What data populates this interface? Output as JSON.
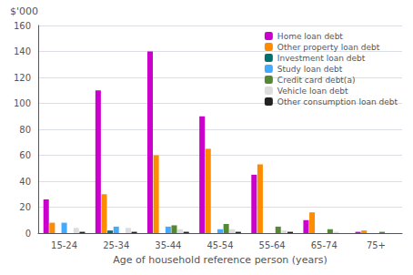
{
  "chart_data": {
    "type": "bar",
    "xlabel": "Age of household reference person (years)",
    "ylabel": "$'000",
    "categories": [
      "15-24",
      "25-34",
      "35-44",
      "45-54",
      "55-64",
      "65-74",
      "75+"
    ],
    "series": [
      {
        "name": "Home loan debt",
        "color": "#CC00CC",
        "values": [
          26,
          110,
          140,
          90,
          45,
          10,
          1
        ]
      },
      {
        "name": "Other property loan debt",
        "color": "#FF8C00",
        "values": [
          8,
          30,
          60,
          65,
          53,
          16,
          2
        ]
      },
      {
        "name": "Investment loan debt",
        "color": "#007070",
        "values": [
          0,
          2,
          0,
          0,
          0,
          0,
          0
        ]
      },
      {
        "name": "Study loan debt",
        "color": "#44AAFF",
        "values": [
          8,
          5,
          5,
          3,
          0,
          0,
          0
        ]
      },
      {
        "name": "Credit card debt(a)",
        "color": "#558833",
        "values": [
          0,
          0,
          6,
          7,
          5,
          3,
          1
        ]
      },
      {
        "name": "Vehicle loan debt",
        "color": "#DDDDDD",
        "values": [
          4,
          4,
          3,
          3,
          2,
          1,
          0
        ]
      },
      {
        "name": "Other consumption loan debt",
        "color": "#222222",
        "values": [
          1,
          1,
          1,
          1,
          1,
          0,
          0
        ]
      }
    ],
    "ylim": [
      0,
      160
    ],
    "yticks": [
      0,
      20,
      40,
      60,
      80,
      100,
      120,
      140,
      160
    ],
    "grid": true,
    "legend": "upper right"
  }
}
